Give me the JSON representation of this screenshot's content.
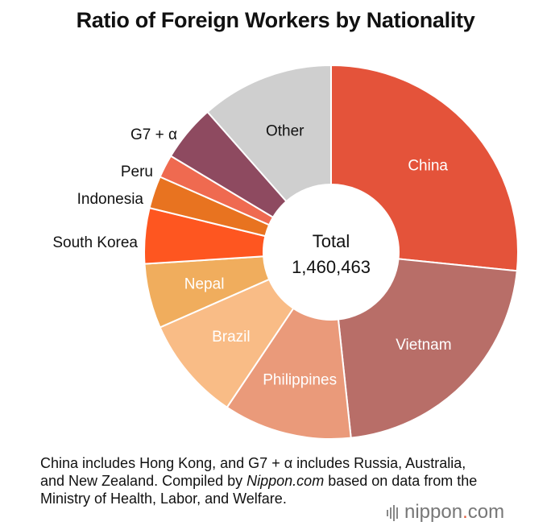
{
  "title": "Ratio of Foreign Workers by Nationality",
  "center_label": "Total",
  "center_value": "1,460,463",
  "note": {
    "part1": "China includes Hong Kong, and G7 + α includes Russia, Australia, and New Zealand. Compiled by ",
    "source": "Nippon.com",
    "part2": " based on data from the Ministry of Health, Labor, and Welfare."
  },
  "logo": {
    "word": "nippon",
    "dot": ".",
    "suffix": "com"
  },
  "chart_data": {
    "type": "pie",
    "title": "Ratio of Foreign Workers by Nationality",
    "total": 1460463,
    "slices": [
      {
        "label": "China",
        "value": 26.6,
        "color": "#e4533a",
        "label_inside": true,
        "label_color": "#ffffff"
      },
      {
        "label": "Vietnam",
        "value": 21.7,
        "color": "#b86e68",
        "label_inside": true,
        "label_color": "#ffffff"
      },
      {
        "label": "Philippines",
        "value": 11.1,
        "color": "#ea9a7a",
        "label_inside": true,
        "label_color": "#ffffff"
      },
      {
        "label": "Brazil",
        "value": 9.0,
        "color": "#f9bc86",
        "label_inside": true,
        "label_color": "#ffffff"
      },
      {
        "label": "Nepal",
        "value": 5.6,
        "color": "#f0ad5d",
        "label_inside": true,
        "label_color": "#ffffff"
      },
      {
        "label": "South Korea",
        "value": 4.8,
        "color": "#fe5620",
        "label_inside": false,
        "label_color": "#111111"
      },
      {
        "label": "Indonesia",
        "value": 2.8,
        "color": "#e87320",
        "label_inside": false,
        "label_color": "#111111"
      },
      {
        "label": "Peru",
        "value": 2.0,
        "color": "#ef6a50",
        "label_inside": false,
        "label_color": "#111111"
      },
      {
        "label": "G7 + α",
        "value": 4.9,
        "color": "#8e4a60",
        "label_inside": false,
        "label_color": "#111111"
      },
      {
        "label": "Other",
        "value": 11.5,
        "color": "#cfcfcf",
        "label_inside": true,
        "label_color": "#111111"
      }
    ]
  }
}
